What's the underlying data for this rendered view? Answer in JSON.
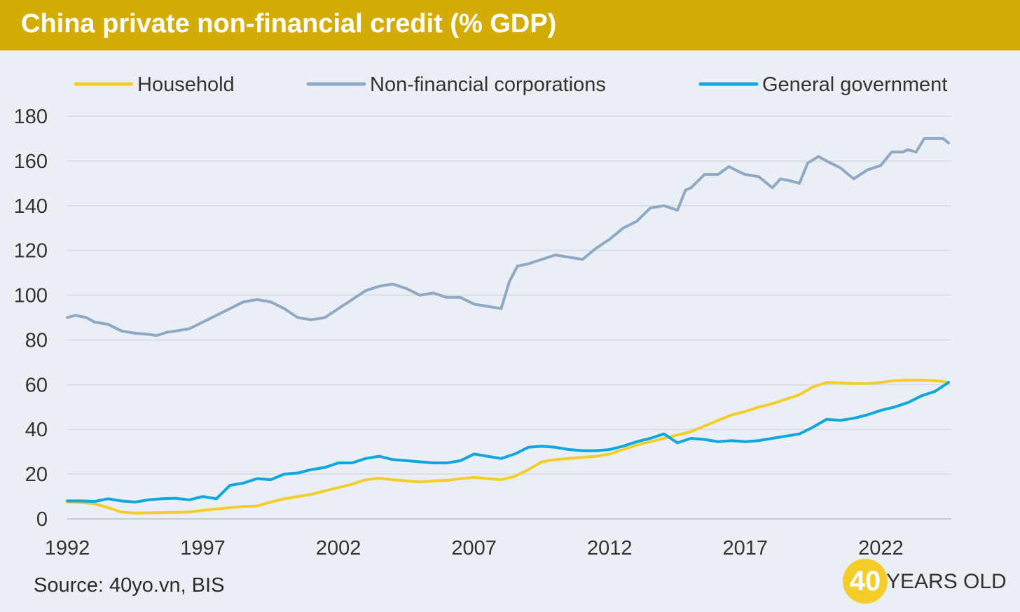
{
  "header": {
    "title": "China private non-financial credit (% GDP)"
  },
  "footer": {
    "source": "Source: 40yo.vn, BIS",
    "brand_number": "40",
    "brand_text": "YEARS OLD"
  },
  "colors": {
    "title_bar": "#d4ac06",
    "background": "#eaeff5",
    "household": "#f5cd2a",
    "corporations": "#8fa9c4",
    "government": "#0fa7dc"
  },
  "chart_data": {
    "type": "line",
    "legend_position": "top",
    "grid": true,
    "xlim": [
      1992,
      2024.6
    ],
    "ylim": [
      0,
      180
    ],
    "x_ticks": [
      1992,
      1997,
      2002,
      2007,
      2012,
      2017,
      2022
    ],
    "y_ticks": [
      0,
      20,
      40,
      60,
      80,
      100,
      120,
      140,
      160,
      180
    ],
    "series": [
      {
        "name": "Household",
        "color": "#f5cd2a",
        "points": [
          [
            1992,
            7.5
          ],
          [
            1992.5,
            7.3
          ],
          [
            1993,
            6.8
          ],
          [
            1993.5,
            5.0
          ],
          [
            1994,
            3.0
          ],
          [
            1994.5,
            2.6
          ],
          [
            1995,
            2.7
          ],
          [
            1995.5,
            2.8
          ],
          [
            1996,
            2.9
          ],
          [
            1996.5,
            3.1
          ],
          [
            1997,
            3.8
          ],
          [
            1997.5,
            4.4
          ],
          [
            1998,
            5.0
          ],
          [
            1998.5,
            5.5
          ],
          [
            1999,
            5.8
          ],
          [
            1999.5,
            7.5
          ],
          [
            2000,
            9.0
          ],
          [
            2000.5,
            10.0
          ],
          [
            2001,
            11.0
          ],
          [
            2001.5,
            12.5
          ],
          [
            2002,
            14.0
          ],
          [
            2002.5,
            15.5
          ],
          [
            2003,
            17.5
          ],
          [
            2003.5,
            18.2
          ],
          [
            2004,
            17.5
          ],
          [
            2004.5,
            17.0
          ],
          [
            2005,
            16.5
          ],
          [
            2005.5,
            17.0
          ],
          [
            2006,
            17.2
          ],
          [
            2006.5,
            18.0
          ],
          [
            2007,
            18.5
          ],
          [
            2007.5,
            18.0
          ],
          [
            2008,
            17.5
          ],
          [
            2008.5,
            19.0
          ],
          [
            2009,
            22.0
          ],
          [
            2009.5,
            25.5
          ],
          [
            2010,
            26.5
          ],
          [
            2010.5,
            27.0
          ],
          [
            2011,
            27.5
          ],
          [
            2011.5,
            28.0
          ],
          [
            2012,
            29.0
          ],
          [
            2012.5,
            31.0
          ],
          [
            2013,
            33.0
          ],
          [
            2013.5,
            34.5
          ],
          [
            2014,
            36.0
          ],
          [
            2014.5,
            37.5
          ],
          [
            2015,
            39.0
          ],
          [
            2015.5,
            41.5
          ],
          [
            2016,
            44.0
          ],
          [
            2016.5,
            46.5
          ],
          [
            2017,
            48.0
          ],
          [
            2017.5,
            50.0
          ],
          [
            2018,
            51.5
          ],
          [
            2018.5,
            53.5
          ],
          [
            2019,
            55.5
          ],
          [
            2019.5,
            59.0
          ],
          [
            2020,
            61.0
          ],
          [
            2020.5,
            60.8
          ],
          [
            2021,
            60.5
          ],
          [
            2021.5,
            60.5
          ],
          [
            2022,
            61.0
          ],
          [
            2022.5,
            61.8
          ],
          [
            2023,
            62.0
          ],
          [
            2023.5,
            62.0
          ],
          [
            2024,
            61.8
          ],
          [
            2024.5,
            61.0
          ]
        ]
      },
      {
        "name": "Non-financial corporations",
        "color": "#8fa9c4",
        "points": [
          [
            1992,
            90
          ],
          [
            1992.3,
            91
          ],
          [
            1992.7,
            90
          ],
          [
            1993,
            88
          ],
          [
            1993.5,
            87
          ],
          [
            1994,
            84
          ],
          [
            1994.5,
            83
          ],
          [
            1995,
            82.5
          ],
          [
            1995.3,
            82
          ],
          [
            1995.7,
            83.5
          ],
          [
            1996,
            84
          ],
          [
            1996.5,
            85
          ],
          [
            1997,
            88
          ],
          [
            1997.5,
            91
          ],
          [
            1998,
            94
          ],
          [
            1998.5,
            97
          ],
          [
            1999,
            98
          ],
          [
            1999.5,
            97
          ],
          [
            2000,
            94
          ],
          [
            2000.5,
            90
          ],
          [
            2001,
            89
          ],
          [
            2001.5,
            90
          ],
          [
            2002,
            94
          ],
          [
            2002.5,
            98
          ],
          [
            2003,
            102
          ],
          [
            2003.5,
            104
          ],
          [
            2004,
            105
          ],
          [
            2004.5,
            103
          ],
          [
            2005,
            100
          ],
          [
            2005.5,
            101
          ],
          [
            2006,
            99
          ],
          [
            2006.5,
            99
          ],
          [
            2007,
            96
          ],
          [
            2007.5,
            95
          ],
          [
            2008,
            94
          ],
          [
            2008.3,
            106
          ],
          [
            2008.6,
            113
          ],
          [
            2009,
            114
          ],
          [
            2009.5,
            116
          ],
          [
            2010,
            118
          ],
          [
            2010.5,
            117
          ],
          [
            2011,
            116
          ],
          [
            2011.5,
            121
          ],
          [
            2012,
            125
          ],
          [
            2012.5,
            130
          ],
          [
            2013,
            133
          ],
          [
            2013.5,
            139
          ],
          [
            2014,
            140
          ],
          [
            2014.5,
            138
          ],
          [
            2014.8,
            147
          ],
          [
            2015,
            148
          ],
          [
            2015.5,
            154
          ],
          [
            2016,
            154
          ],
          [
            2016.4,
            157.5
          ],
          [
            2016.8,
            155
          ],
          [
            2017,
            154
          ],
          [
            2017.5,
            153
          ],
          [
            2018,
            148
          ],
          [
            2018.3,
            152
          ],
          [
            2018.7,
            151
          ],
          [
            2019,
            150
          ],
          [
            2019.3,
            159
          ],
          [
            2019.7,
            162
          ],
          [
            2020,
            160
          ],
          [
            2020.5,
            157
          ],
          [
            2021,
            152
          ],
          [
            2021.5,
            156
          ],
          [
            2022,
            158
          ],
          [
            2022.4,
            164
          ],
          [
            2022.8,
            164
          ],
          [
            2023,
            165
          ],
          [
            2023.3,
            164
          ],
          [
            2023.6,
            170
          ],
          [
            2024,
            170
          ],
          [
            2024.3,
            170
          ],
          [
            2024.5,
            168
          ]
        ]
      },
      {
        "name": "General government",
        "color": "#0fa7dc",
        "points": [
          [
            1992,
            8.0
          ],
          [
            1992.5,
            8.0
          ],
          [
            1993,
            7.8
          ],
          [
            1993.5,
            9.0
          ],
          [
            1994,
            8.0
          ],
          [
            1994.5,
            7.5
          ],
          [
            1995,
            8.5
          ],
          [
            1995.5,
            9.0
          ],
          [
            1996,
            9.2
          ],
          [
            1996.5,
            8.5
          ],
          [
            1997,
            10.0
          ],
          [
            1997.5,
            9.0
          ],
          [
            1998,
            15.0
          ],
          [
            1998.5,
            16.0
          ],
          [
            1999,
            18.0
          ],
          [
            1999.5,
            17.5
          ],
          [
            2000,
            20.0
          ],
          [
            2000.5,
            20.5
          ],
          [
            2001,
            22.0
          ],
          [
            2001.5,
            23.0
          ],
          [
            2002,
            25.0
          ],
          [
            2002.5,
            25.0
          ],
          [
            2003,
            27.0
          ],
          [
            2003.5,
            28.0
          ],
          [
            2004,
            26.5
          ],
          [
            2004.5,
            26.0
          ],
          [
            2005,
            25.5
          ],
          [
            2005.5,
            25.0
          ],
          [
            2006,
            25.0
          ],
          [
            2006.5,
            26.0
          ],
          [
            2007,
            29.0
          ],
          [
            2007.5,
            28.0
          ],
          [
            2008,
            27.0
          ],
          [
            2008.5,
            29.0
          ],
          [
            2009,
            32.0
          ],
          [
            2009.5,
            32.5
          ],
          [
            2010,
            32.0
          ],
          [
            2010.5,
            31.0
          ],
          [
            2011,
            30.5
          ],
          [
            2011.5,
            30.5
          ],
          [
            2012,
            31.0
          ],
          [
            2012.5,
            32.5
          ],
          [
            2013,
            34.5
          ],
          [
            2013.5,
            36.0
          ],
          [
            2014,
            38.0
          ],
          [
            2014.5,
            34.0
          ],
          [
            2015,
            36.0
          ],
          [
            2015.5,
            35.5
          ],
          [
            2016,
            34.5
          ],
          [
            2016.5,
            35.0
          ],
          [
            2017,
            34.5
          ],
          [
            2017.5,
            35.0
          ],
          [
            2018,
            36.0
          ],
          [
            2018.5,
            37.0
          ],
          [
            2019,
            38.0
          ],
          [
            2019.5,
            41.0
          ],
          [
            2020,
            44.5
          ],
          [
            2020.5,
            44.0
          ],
          [
            2021,
            45.0
          ],
          [
            2021.5,
            46.5
          ],
          [
            2022,
            48.5
          ],
          [
            2022.5,
            50.0
          ],
          [
            2023,
            52.0
          ],
          [
            2023.5,
            55.0
          ],
          [
            2024,
            57.0
          ],
          [
            2024.5,
            61.0
          ]
        ]
      }
    ]
  }
}
